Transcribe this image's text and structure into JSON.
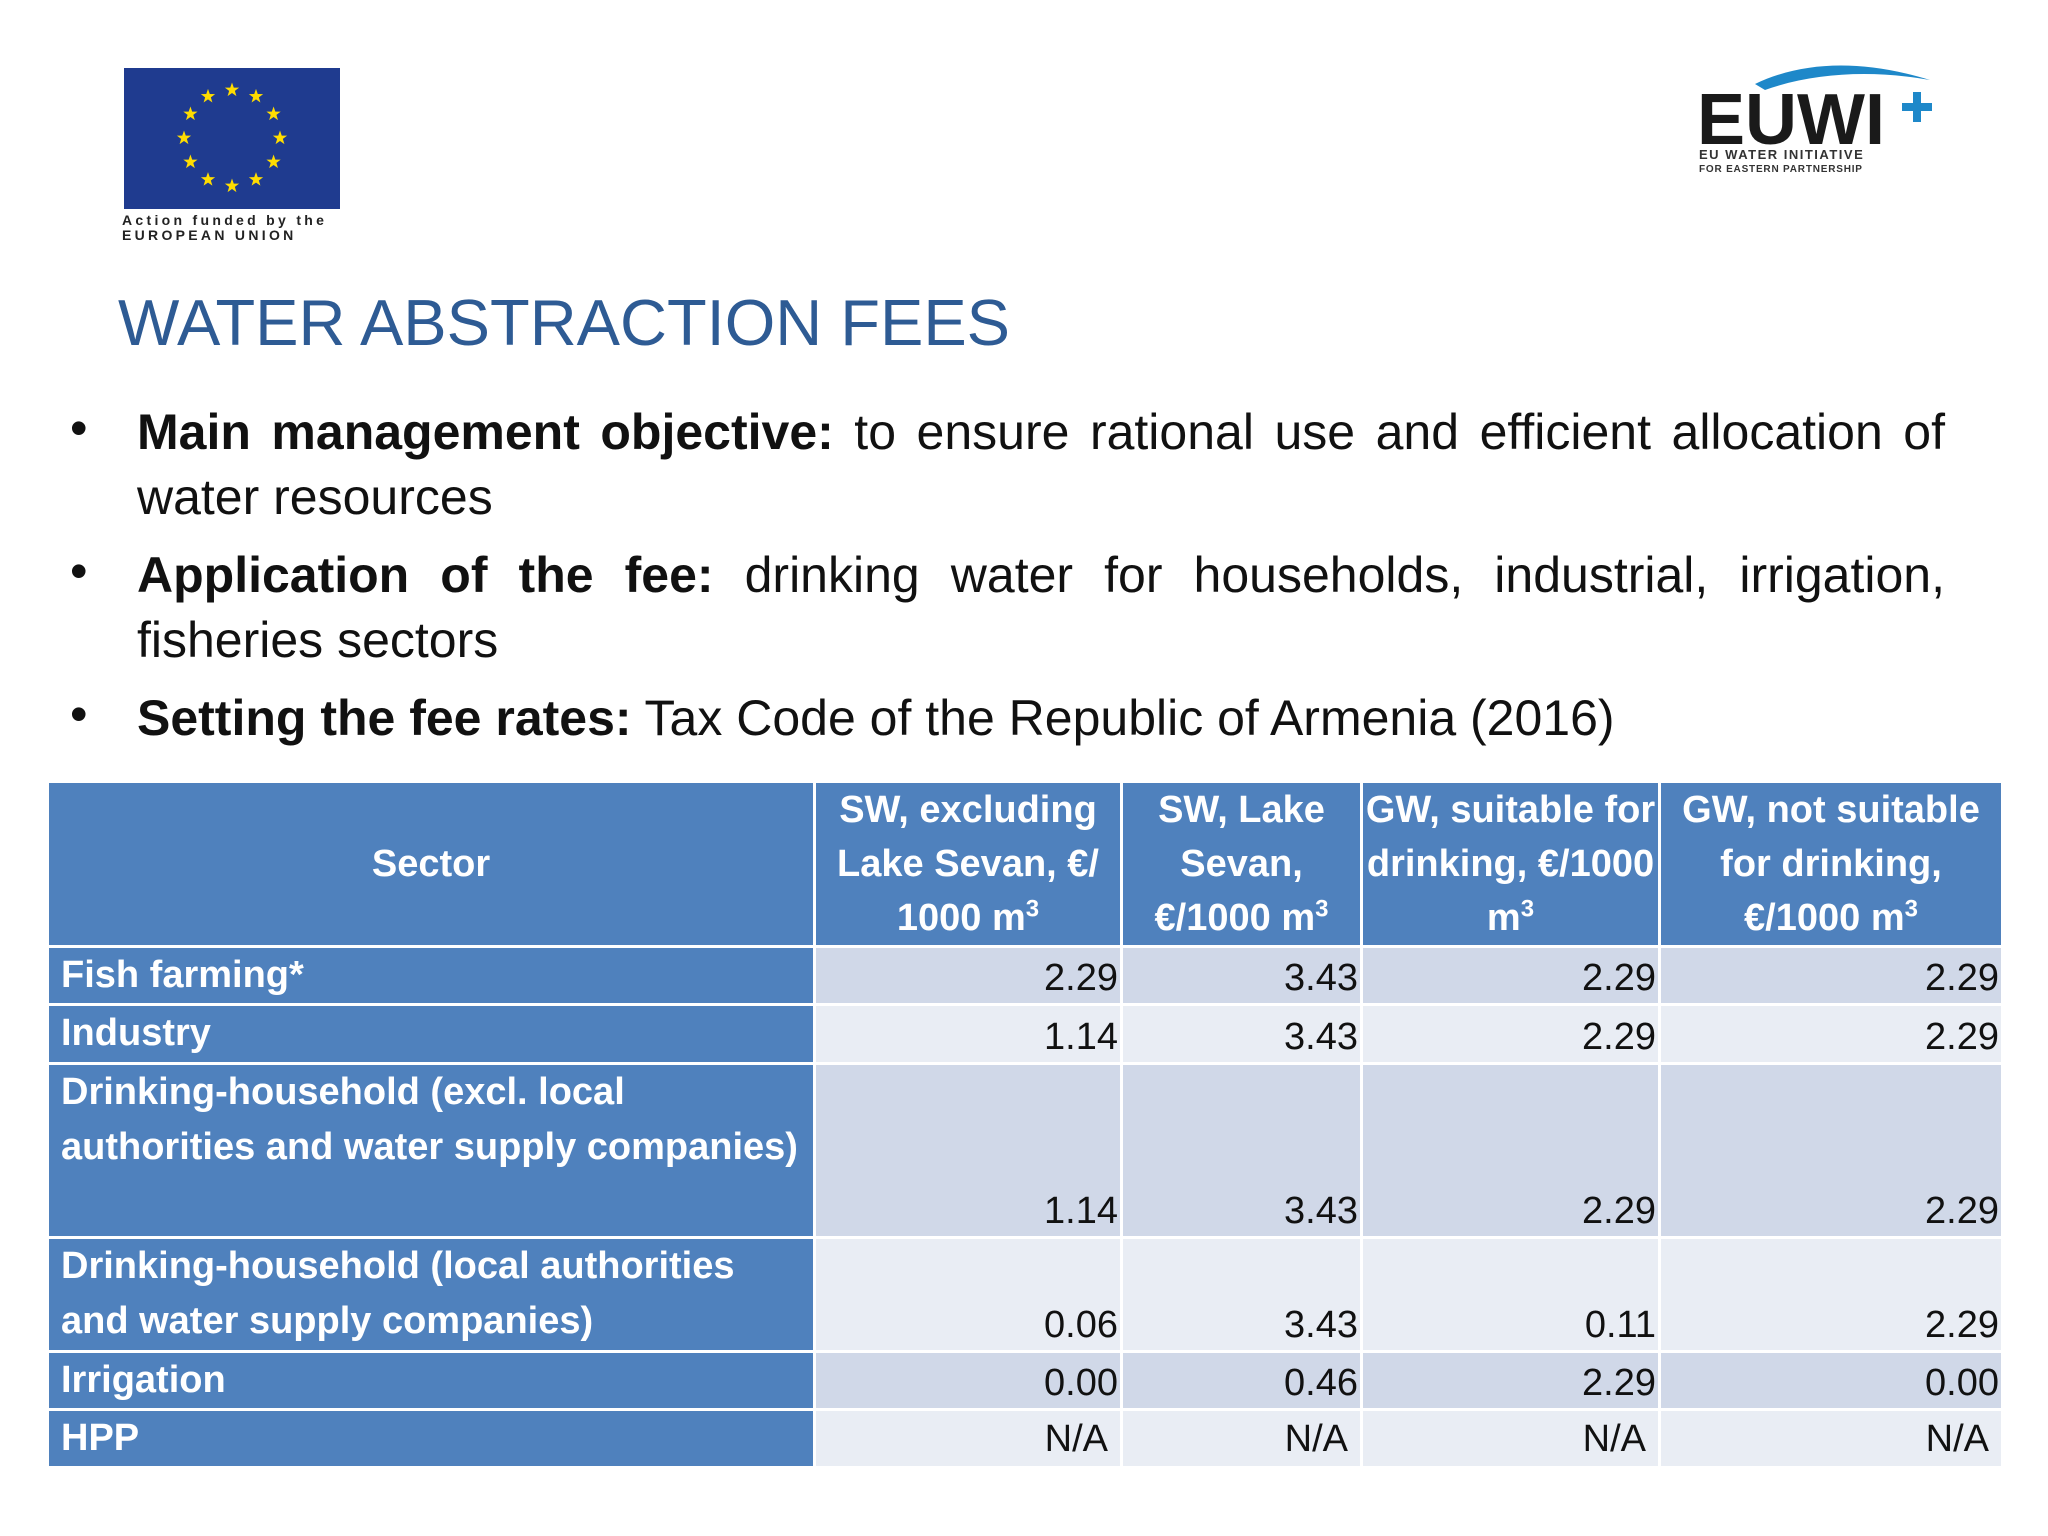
{
  "logos": {
    "eu_line1": "Action funded by the",
    "eu_line2": "EUROPEAN UNION",
    "euwi": "EUWI",
    "euwi_line1": "EU WATER INITIATIVE",
    "euwi_line2": "FOR EASTERN PARTNERSHIP"
  },
  "title": "WATER ABSTRACTION FEES",
  "bullets": [
    {
      "lead": "Main management objective:",
      "text": " to ensure rational use and efficient allocation of water resources"
    },
    {
      "lead": "Application of the fee:",
      "text": " drinking water for households, industrial, irrigation, fisheries sectors"
    },
    {
      "lead": "Setting the fee rates:",
      "text": " Tax Code of the Republic of Armenia (2016)"
    }
  ],
  "table": {
    "header": [
      {
        "text": "Sector"
      },
      {
        "text": "SW, excluding Lake Sevan, €/ 1000 m",
        "sup": "3"
      },
      {
        "text": "SW, Lake Sevan, €/1000 m",
        "sup": "3"
      },
      {
        "text": "GW, suitable for drinking, €/1000 m",
        "sup": "3"
      },
      {
        "text": "GW, not suitable for drinking, €/1000 m",
        "sup": "3"
      }
    ],
    "rows": [
      [
        "Fish farming*",
        "2.29",
        "3.43",
        "2.29",
        "2.29"
      ],
      [
        "Industry",
        "1.14",
        "3.43",
        "2.29",
        "2.29"
      ],
      [
        "Drinking-household (excl. local authorities and water supply companies)",
        "1.14",
        "3.43",
        "2.29",
        "2.29"
      ],
      [
        "Drinking-household (local authorities and water supply companies)",
        "0.06",
        "3.43",
        "0.11",
        "2.29"
      ],
      [
        "Irrigation",
        "0.00",
        "0.46",
        "2.29",
        "0.00"
      ],
      [
        "HPP",
        "N/A",
        "N/A",
        "N/A",
        "N/A"
      ]
    ]
  }
}
